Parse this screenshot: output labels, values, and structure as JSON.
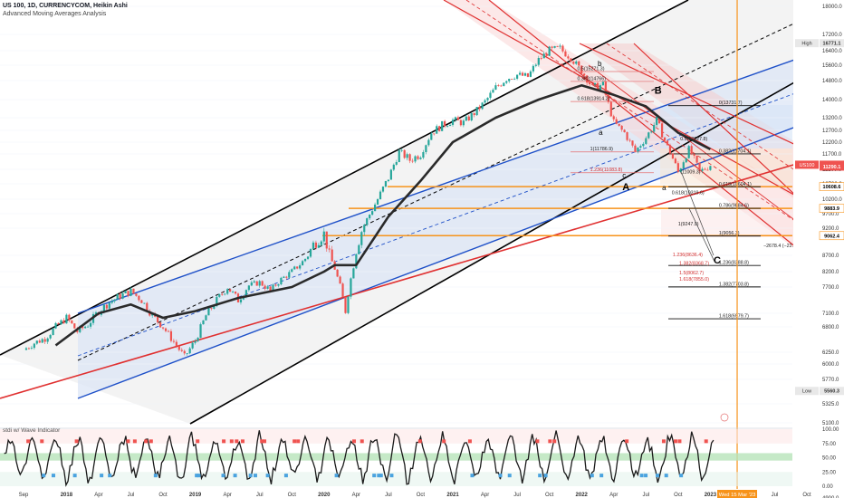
{
  "header": {
    "title": "US 100, 1D, CURRENCYCOM, Heikin Ashi",
    "subtitle": "Advanced Moving Averages Analysis"
  },
  "oscillator_label": "stdi w/ Wave Indicator",
  "colors": {
    "candle_up": "#26a69a",
    "candle_down": "#ef5350",
    "ma": "#2a2a2a",
    "channel_black": "#000000",
    "channel_blue": "#1e50c8",
    "channel_red": "#e03030",
    "fib_orange": "#f7931a",
    "price_badge": "#ef5350"
  },
  "chart_data": {
    "type": "candlestick",
    "symbol": "US 100",
    "price_axis": {
      "ticks": [
        18000,
        17200,
        16400,
        15600,
        14800,
        14000,
        13200,
        12700,
        12200,
        11700,
        11200,
        10700,
        10200,
        9700,
        9200,
        8700,
        8200,
        7700,
        7100,
        6800,
        6250,
        6000,
        5770,
        5325,
        5100,
        4900
      ],
      "tick_labels": [
        "18000.0",
        "17200.0",
        "16400.0",
        "15600.0",
        "14800.0",
        "14000.0",
        "13200.0",
        "12700.0",
        "12200.0",
        "11700.0",
        "11200.0",
        "10700.0",
        "10200.0",
        "9700.0",
        "9200.0",
        "8700.0",
        "8200.0",
        "7700.0",
        "7100.0",
        "6800.0",
        "6250.0",
        "6000.0",
        "5770.0",
        "5325.0",
        "5100.0",
        "4900.0"
      ],
      "badges": [
        {
          "label": "High",
          "value": "16771.1",
          "price": 16771.1,
          "style": "light"
        },
        {
          "label": "US100",
          "value": "11349.2",
          "price": 11349.2,
          "style": "red"
        },
        {
          "label": "",
          "value": "11290.1",
          "price": 11290.1,
          "style": "red"
        },
        {
          "label": "",
          "value": "10608.6",
          "price": 10608.6,
          "style": "orange"
        },
        {
          "label": "",
          "value": "9883.9",
          "price": 9883.9,
          "style": "orange"
        },
        {
          "label": "",
          "value": "9062.4",
          "price": 9062.4,
          "style": "orange"
        },
        {
          "label": "Low",
          "value": "5560.3",
          "price": 5560.3,
          "style": "light"
        }
      ]
    },
    "time_axis": {
      "labels": [
        "Sep",
        "2018",
        "Apr",
        "Jul",
        "Oct",
        "2019",
        "Apr",
        "Jul",
        "Oct",
        "2020",
        "Apr",
        "Jul",
        "Oct",
        "2021",
        "Apr",
        "Jul",
        "Oct",
        "2022",
        "Apr",
        "Jul",
        "Oct",
        "2023",
        "Apr",
        "Jul",
        "Oct"
      ],
      "months": [
        0,
        4,
        7,
        10,
        13,
        16,
        19,
        22,
        25,
        28,
        31,
        34,
        37,
        40,
        43,
        46,
        49,
        52,
        55,
        58,
        61,
        64,
        67,
        70,
        73
      ],
      "cursor_label": "Wed 15 Mar '23",
      "cursor_month": 66.5
    },
    "price_path": [
      [
        0,
        6300
      ],
      [
        1,
        6450
      ],
      [
        2,
        6550
      ],
      [
        3,
        6800
      ],
      [
        4,
        7000
      ],
      [
        5,
        6700
      ],
      [
        6,
        6850
      ],
      [
        7,
        7150
      ],
      [
        8,
        7350
      ],
      [
        9,
        7500
      ],
      [
        10,
        7600
      ],
      [
        11,
        7400
      ],
      [
        12,
        7050
      ],
      [
        13,
        6800
      ],
      [
        15,
        6150
      ],
      [
        16,
        6500
      ],
      [
        17,
        7050
      ],
      [
        18,
        7400
      ],
      [
        19,
        7700
      ],
      [
        20,
        7400
      ],
      [
        21,
        7750
      ],
      [
        22,
        7850
      ],
      [
        23,
        7600
      ],
      [
        24,
        7950
      ],
      [
        25,
        8200
      ],
      [
        26,
        8500
      ],
      [
        27,
        8900
      ],
      [
        28,
        9100
      ],
      [
        29,
        8300
      ],
      [
        30,
        7150
      ],
      [
        31,
        8800
      ],
      [
        32,
        9500
      ],
      [
        33,
        10200
      ],
      [
        34,
        10900
      ],
      [
        35,
        11800
      ],
      [
        36,
        11500
      ],
      [
        37,
        11700
      ],
      [
        38,
        12600
      ],
      [
        39,
        12900
      ],
      [
        40,
        13100
      ],
      [
        41,
        13000
      ],
      [
        42,
        13400
      ],
      [
        43,
        13900
      ],
      [
        44,
        14500
      ],
      [
        45,
        14900
      ],
      [
        46,
        15100
      ],
      [
        47,
        15000
      ],
      [
        48,
        15900
      ],
      [
        49,
        16400
      ],
      [
        50,
        16500
      ],
      [
        51,
        16000
      ],
      [
        52,
        15300
      ],
      [
        53,
        14500
      ],
      [
        54,
        14600
      ],
      [
        55,
        13000
      ],
      [
        56,
        12600
      ],
      [
        57,
        11800
      ],
      [
        58,
        12400
      ],
      [
        59,
        13100
      ],
      [
        60,
        12000
      ],
      [
        61,
        11100
      ],
      [
        62,
        11900
      ],
      [
        63,
        11100
      ],
      [
        64,
        11350
      ]
    ],
    "moving_average": [
      [
        3,
        6400
      ],
      [
        7,
        7100
      ],
      [
        10,
        7300
      ],
      [
        13,
        7000
      ],
      [
        16,
        7150
      ],
      [
        20,
        7450
      ],
      [
        25,
        7700
      ],
      [
        28,
        8200
      ],
      [
        29,
        8400
      ],
      [
        31,
        8400
      ],
      [
        34,
        9600
      ],
      [
        37,
        10800
      ],
      [
        40,
        12200
      ],
      [
        44,
        13200
      ],
      [
        48,
        14000
      ],
      [
        52,
        14600
      ],
      [
        55,
        14200
      ],
      [
        58,
        13700
      ],
      [
        61,
        12600
      ],
      [
        64,
        11900
      ]
    ],
    "fib_labels": [
      {
        "text": "0.5(15271.3)",
        "m": 51.6,
        "p": 15271.3
      },
      {
        "text": "0.382(14766)",
        "m": 51.6,
        "p": 14766
      },
      {
        "text": "0.618(13914.2)",
        "m": 51.6,
        "p": 13914.2
      },
      {
        "text": "1(11786.9)",
        "m": 52.8,
        "p": 11786.9
      },
      {
        "text": "1.236(11083.8)",
        "m": 52.8,
        "p": 11083.8
      },
      {
        "text": "0(13731.7)",
        "m": 64.8,
        "p": 13731.7
      },
      {
        "text": "0.5(12227.8)",
        "m": 61.2,
        "p": 12227.8
      },
      {
        "text": "0.382(11704.1)",
        "m": 64.8,
        "p": 11704.1
      },
      {
        "text": "(11009.3)",
        "m": 61.2,
        "p": 11009.3
      },
      {
        "text": "0.618(10604.1)",
        "m": 64.8,
        "p": 10604.1
      },
      {
        "text": "0.618(10319.6)",
        "m": 60.4,
        "p": 10319.6
      },
      {
        "text": "0.786(9884.6)",
        "m": 64.8,
        "p": 9884.6
      },
      {
        "text": "1(9247.9)",
        "m": 61.0,
        "p": 9247.9
      },
      {
        "text": "1(9056.3)",
        "m": 64.8,
        "p": 9056.3
      },
      {
        "text": "1.236(8636.4)",
        "m": 60.5,
        "p": 8636.4
      },
      {
        "text": "1.382(8368.7)",
        "m": 61.1,
        "p": 8368.7
      },
      {
        "text": "1.236(8388.8)",
        "m": 64.8,
        "p": 8388.8
      },
      {
        "text": "1.5(8062.7)",
        "m": 61.1,
        "p": 8062.7
      },
      {
        "text": "1.618(7855.0)",
        "m": 61.1,
        "p": 7855.0
      },
      {
        "text": "1.382(7703.8)",
        "m": 64.8,
        "p": 7703.8
      },
      {
        "text": "1.618(6979.7)",
        "m": 64.8,
        "p": 6979.7
      }
    ],
    "measure_label": "−2678.4 (−22.90%) −26784",
    "wave_labels": [
      {
        "text": "b",
        "m": 53.5,
        "p": 15550,
        "size": "small"
      },
      {
        "text": "B",
        "m": 58.8,
        "p": 14250,
        "size": "large"
      },
      {
        "text": "a",
        "m": 53.6,
        "p": 12500,
        "size": "small"
      },
      {
        "text": "c",
        "m": 55.8,
        "p": 10900,
        "size": "small"
      },
      {
        "text": "A",
        "m": 55.8,
        "p": 10500,
        "size": "large"
      },
      {
        "text": "a",
        "m": 59.5,
        "p": 10500,
        "size": "small"
      },
      {
        "text": "C",
        "m": 64.3,
        "p": 8450,
        "size": "large"
      }
    ],
    "oscillator": {
      "ticks": [
        100,
        75,
        50,
        25,
        0
      ],
      "tick_labels": [
        "100.00",
        "75.00",
        "50.00",
        "25.00",
        "0.00"
      ],
      "range": [
        0,
        100
      ]
    }
  }
}
